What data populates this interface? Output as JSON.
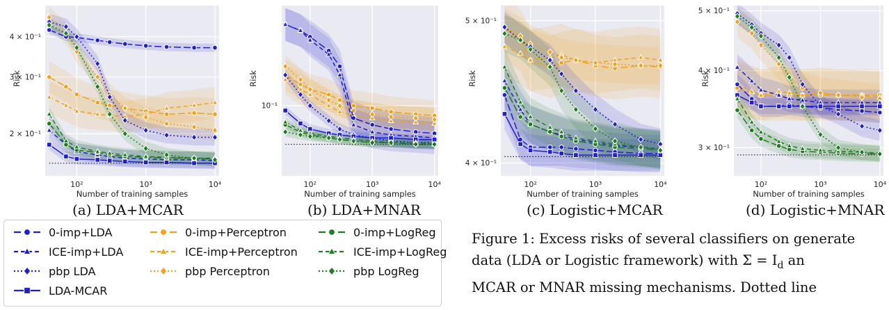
{
  "chart_data": [
    {
      "type": "line",
      "subcaption": "(a) LDA+MCAR",
      "xlabel": "Number of training samples",
      "ylabel": "Risk",
      "xscale": "log",
      "yscale": "log",
      "xlim": [
        35,
        11500
      ],
      "ylim": [
        0.148,
        0.5
      ],
      "xticks": [
        {
          "value": 100,
          "label": "10²"
        },
        {
          "value": 1000,
          "label": "10³"
        },
        {
          "value": 10000,
          "label": "10⁴"
        }
      ],
      "yticks": [
        {
          "value": 0.2,
          "label": "2 × 10⁻¹"
        },
        {
          "value": 0.3,
          "label": "3 × 10⁻¹"
        },
        {
          "value": 0.4,
          "label": "4 × 10⁻¹"
        }
      ],
      "x": [
        40,
        70,
        100,
        200,
        300,
        500,
        1000,
        2000,
        5000,
        10000
      ],
      "bayes_risk": 0.162,
      "series": [
        {
          "style": "0-imp+LDA",
          "values": [
            0.42,
            0.4,
            0.398,
            0.39,
            0.385,
            0.38,
            0.375,
            0.372,
            0.37,
            0.37
          ],
          "band": 0.03
        },
        {
          "style": "ICE-imp+LDA",
          "values": [
            0.205,
            0.185,
            0.176,
            0.172,
            0.17,
            0.168,
            0.167,
            0.166,
            0.166,
            0.165
          ],
          "band": 0.06
        },
        {
          "style": "pbp LDA",
          "values": [
            0.445,
            0.43,
            0.4,
            0.33,
            0.26,
            0.22,
            0.205,
            0.198,
            0.195,
            0.195
          ],
          "band": 0.06
        },
        {
          "style": "LDA-MCAR",
          "values": [
            0.185,
            0.17,
            0.167,
            0.166,
            0.165,
            0.164,
            0.163,
            0.163,
            0.162,
            0.162
          ],
          "band": 0.04
        },
        {
          "style": "0-imp+Perceptron",
          "values": [
            0.3,
            0.28,
            0.265,
            0.25,
            0.245,
            0.24,
            0.235,
            0.23,
            0.232,
            0.23
          ],
          "band": 0.12
        },
        {
          "style": "ICE-imp+Perceptron",
          "values": [
            0.26,
            0.245,
            0.235,
            0.23,
            0.228,
            0.226,
            0.23,
            0.24,
            0.245,
            0.25
          ],
          "band": 0.12
        },
        {
          "style": "pbp Perceptron",
          "values": [
            0.46,
            0.41,
            0.36,
            0.3,
            0.265,
            0.24,
            0.225,
            0.215,
            0.21,
            0.205
          ],
          "band": 0.08
        },
        {
          "style": "0-imp+LogReg",
          "values": [
            0.215,
            0.185,
            0.178,
            0.175,
            0.172,
            0.17,
            0.169,
            0.168,
            0.168,
            0.167
          ],
          "band": 0.05
        },
        {
          "style": "ICE-imp+LogReg",
          "values": [
            0.23,
            0.19,
            0.182,
            0.176,
            0.174,
            0.172,
            0.17,
            0.169,
            0.168,
            0.168
          ],
          "band": 0.05
        },
        {
          "style": "pbp LogReg",
          "values": [
            0.435,
            0.41,
            0.37,
            0.28,
            0.23,
            0.2,
            0.18,
            0.172,
            0.168,
            0.166
          ],
          "band": 0.05
        }
      ]
    },
    {
      "type": "line",
      "subcaption": "(b) LDA+MNAR",
      "xlabel": "Number of training samples",
      "ylabel": "Risk",
      "xscale": "log",
      "yscale": "log",
      "xlim": [
        35,
        11500
      ],
      "ylim": [
        0.055,
        0.235
      ],
      "xticks": [
        {
          "value": 100,
          "label": "10²"
        },
        {
          "value": 1000,
          "label": "10³"
        },
        {
          "value": 10000,
          "label": "10⁴"
        }
      ],
      "yticks": [
        {
          "value": 0.1,
          "label": "10⁻¹"
        }
      ],
      "x": [
        40,
        70,
        100,
        200,
        300,
        500,
        1000,
        2000,
        5000,
        10000
      ],
      "bayes_risk": 0.072,
      "series": [
        {
          "style": "0-imp+LDA",
          "values": [
            0.2,
            0.19,
            0.18,
            0.16,
            0.14,
            0.09,
            0.085,
            0.082,
            0.08,
            0.079
          ],
          "band": 0.15
        },
        {
          "style": "ICE-imp+LDA",
          "values": [
            0.2,
            0.19,
            0.175,
            0.155,
            0.13,
            0.085,
            0.08,
            0.078,
            0.077,
            0.076
          ],
          "band": 0.15
        },
        {
          "style": "pbp LDA",
          "values": [
            0.13,
            0.11,
            0.1,
            0.088,
            0.082,
            0.078,
            0.076,
            0.074,
            0.073,
            0.073
          ],
          "band": 0.05
        },
        {
          "style": "LDA-MCAR",
          "values": [
            0.096,
            0.086,
            0.082,
            0.079,
            0.078,
            0.077,
            0.076,
            0.076,
            0.075,
            0.075
          ],
          "band": 0.04
        },
        {
          "style": "0-imp+Perceptron",
          "values": [
            0.13,
            0.12,
            0.115,
            0.11,
            0.105,
            0.1,
            0.098,
            0.095,
            0.093,
            0.092
          ],
          "band": 0.14
        },
        {
          "style": "ICE-imp+Perceptron",
          "values": [
            0.125,
            0.115,
            0.11,
            0.1,
            0.095,
            0.092,
            0.09,
            0.088,
            0.087,
            0.086
          ],
          "band": 0.14
        },
        {
          "style": "pbp Perceptron",
          "values": [
            0.14,
            0.125,
            0.115,
            0.105,
            0.1,
            0.096,
            0.093,
            0.091,
            0.09,
            0.089
          ],
          "band": 0.1
        },
        {
          "style": "0-imp+LogReg",
          "values": [
            0.085,
            0.08,
            0.078,
            0.076,
            0.075,
            0.074,
            0.073,
            0.073,
            0.072,
            0.072
          ],
          "band": 0.04
        },
        {
          "style": "ICE-imp+LogReg",
          "values": [
            0.087,
            0.081,
            0.079,
            0.077,
            0.076,
            0.075,
            0.074,
            0.073,
            0.073,
            0.072
          ],
          "band": 0.04
        },
        {
          "style": "pbp LogReg",
          "values": [
            0.08,
            0.078,
            0.077,
            0.076,
            0.075,
            0.074,
            0.073,
            0.073,
            0.072,
            0.072
          ],
          "band": 0.04
        }
      ]
    },
    {
      "type": "line",
      "subcaption": "(c) Logistic+MCAR",
      "xlabel": "Number of training samples",
      "ylabel": "Risk",
      "xscale": "log",
      "yscale": "log",
      "xlim": [
        35,
        11500
      ],
      "ylim": [
        0.392,
        0.512
      ],
      "xticks": [
        {
          "value": 100,
          "label": "10²"
        },
        {
          "value": 1000,
          "label": "10³"
        },
        {
          "value": 10000,
          "label": "10⁴"
        }
      ],
      "yticks": [
        {
          "value": 0.4,
          "label": "4 × 10⁻¹"
        },
        {
          "value": 0.5,
          "label": "5 × 10⁻¹"
        }
      ],
      "x": [
        40,
        70,
        100,
        200,
        300,
        500,
        1000,
        2000,
        5000,
        10000
      ],
      "bayes_risk": 0.404,
      "series": [
        {
          "style": "0-imp+LDA",
          "values": [
            0.445,
            0.415,
            0.41,
            0.41,
            0.41,
            0.409,
            0.408,
            0.407,
            0.406,
            0.406
          ],
          "band": 0.03
        },
        {
          "style": "ICE-imp+LDA",
          "values": [
            0.455,
            0.435,
            0.425,
            0.42,
            0.418,
            0.415,
            0.413,
            0.411,
            0.41,
            0.409
          ],
          "band": 0.03
        },
        {
          "style": "pbp LDA",
          "values": [
            0.495,
            0.485,
            0.48,
            0.47,
            0.46,
            0.448,
            0.435,
            0.425,
            0.415,
            0.412
          ],
          "band": 0.025
        },
        {
          "style": "LDA-MCAR",
          "values": [
            0.432,
            0.412,
            0.408,
            0.407,
            0.406,
            0.405,
            0.405,
            0.405,
            0.405,
            0.405
          ],
          "band": 0.025
        },
        {
          "style": "0-imp+Perceptron",
          "values": [
            0.495,
            0.485,
            0.47,
            0.465,
            0.468,
            0.47,
            0.466,
            0.464,
            0.466,
            0.465
          ],
          "band": 0.05
        },
        {
          "style": "ICE-imp+Perceptron",
          "values": [
            0.48,
            0.475,
            0.47,
            0.472,
            0.474,
            0.47,
            0.468,
            0.47,
            0.472,
            0.47
          ],
          "band": 0.05
        },
        {
          "style": "pbp Perceptron",
          "values": [
            0.495,
            0.488,
            0.482,
            0.476,
            0.472,
            0.47,
            0.468,
            0.467,
            0.466,
            0.466
          ],
          "band": 0.03
        },
        {
          "style": "0-imp+LogReg",
          "values": [
            0.45,
            0.43,
            0.425,
            0.42,
            0.417,
            0.414,
            0.412,
            0.41,
            0.409,
            0.408
          ],
          "band": 0.03
        },
        {
          "style": "ICE-imp+LogReg",
          "values": [
            0.465,
            0.44,
            0.43,
            0.423,
            0.42,
            0.416,
            0.414,
            0.412,
            0.41,
            0.409
          ],
          "band": 0.03
        },
        {
          "style": "pbp LogReg",
          "values": [
            0.49,
            0.485,
            0.478,
            0.465,
            0.448,
            0.435,
            0.422,
            0.414,
            0.41,
            0.408
          ],
          "band": 0.03
        }
      ]
    },
    {
      "type": "line",
      "subcaption": "(d) Logistic+MNAR",
      "xlabel": "Number of training samples",
      "ylabel": "Risk",
      "xscale": "log",
      "yscale": "log",
      "xlim": [
        35,
        11500
      ],
      "ylim": [
        0.27,
        0.51
      ],
      "xticks": [
        {
          "value": 100,
          "label": "10²"
        },
        {
          "value": 1000,
          "label": "10³"
        },
        {
          "value": 10000,
          "label": "10⁴"
        }
      ],
      "yticks": [
        {
          "value": 0.3,
          "label": "3 × 10⁻¹"
        },
        {
          "value": 0.4,
          "label": "4 × 10⁻¹"
        },
        {
          "value": 0.5,
          "label": "5 × 10⁻¹"
        }
      ],
      "x": [
        40,
        70,
        100,
        200,
        300,
        500,
        1000,
        2000,
        5000,
        10000
      ],
      "bayes_risk": 0.292,
      "series": [
        {
          "style": "0-imp+LDA",
          "values": [
            0.38,
            0.36,
            0.35,
            0.35,
            0.352,
            0.35,
            0.348,
            0.346,
            0.344,
            0.342
          ],
          "band": 0.04
        },
        {
          "style": "ICE-imp+LDA",
          "values": [
            0.405,
            0.385,
            0.372,
            0.365,
            0.36,
            0.358,
            0.355,
            0.355,
            0.355,
            0.355
          ],
          "band": 0.05
        },
        {
          "style": "pbp LDA",
          "values": [
            0.495,
            0.475,
            0.46,
            0.44,
            0.42,
            0.38,
            0.35,
            0.34,
            0.325,
            0.32
          ],
          "band": 0.04
        },
        {
          "style": "LDA-MCAR",
          "values": [
            0.365,
            0.355,
            0.35,
            0.35,
            0.35,
            0.35,
            0.35,
            0.35,
            0.35,
            0.35
          ],
          "band": 0.03
        },
        {
          "style": "0-imp+Perceptron",
          "values": [
            0.375,
            0.368,
            0.365,
            0.365,
            0.365,
            0.365,
            0.365,
            0.365,
            0.365,
            0.365
          ],
          "band": 0.1
        },
        {
          "style": "ICE-imp+Perceptron",
          "values": [
            0.38,
            0.37,
            0.365,
            0.37,
            0.368,
            0.365,
            0.368,
            0.365,
            0.364,
            0.362
          ],
          "band": 0.1
        },
        {
          "style": "pbp Perceptron",
          "values": [
            0.48,
            0.46,
            0.44,
            0.41,
            0.39,
            0.375,
            0.368,
            0.365,
            0.362,
            0.36
          ],
          "band": 0.06
        },
        {
          "style": "0-imp+LogReg",
          "values": [
            0.345,
            0.32,
            0.31,
            0.302,
            0.298,
            0.296,
            0.295,
            0.294,
            0.293,
            0.293
          ],
          "band": 0.03
        },
        {
          "style": "ICE-imp+LogReg",
          "values": [
            0.36,
            0.33,
            0.318,
            0.307,
            0.302,
            0.299,
            0.297,
            0.296,
            0.295,
            0.294
          ],
          "band": 0.03
        },
        {
          "style": "pbp LogReg",
          "values": [
            0.49,
            0.47,
            0.455,
            0.42,
            0.39,
            0.35,
            0.315,
            0.3,
            0.295,
            0.293
          ],
          "band": 0.03
        }
      ]
    }
  ],
  "styles": {
    "0-imp+LDA": {
      "color": "#1f1fcf",
      "dash": "10,4",
      "marker": "circle"
    },
    "ICE-imp+LDA": {
      "color": "#1f1fcf",
      "dash": "6,4",
      "marker": "triangle"
    },
    "pbp LDA": {
      "color": "#1f1fcf",
      "dash": "2,3",
      "marker": "diamond"
    },
    "LDA-MCAR": {
      "color": "#1f1fcf",
      "dash": "",
      "marker": "square"
    },
    "0-imp+Perceptron": {
      "color": "#f0a11d",
      "dash": "10,4",
      "marker": "circle"
    },
    "ICE-imp+Perceptron": {
      "color": "#f0a11d",
      "dash": "6,4",
      "marker": "triangle"
    },
    "pbp Perceptron": {
      "color": "#f0a11d",
      "dash": "2,3",
      "marker": "diamond"
    },
    "0-imp+LogReg": {
      "color": "#1e7d1e",
      "dash": "10,4",
      "marker": "circle"
    },
    "ICE-imp+LogReg": {
      "color": "#1e7d1e",
      "dash": "6,4",
      "marker": "triangle"
    },
    "pbp LogReg": {
      "color": "#1e7d1e",
      "dash": "2,3",
      "marker": "diamond"
    }
  },
  "plot_background": "#eaeaf2",
  "legend": {
    "placement": "bottom-left",
    "entries": [
      {
        "label": "0-imp+LDA",
        "style": "0-imp+LDA"
      },
      {
        "label": "0-imp+Perceptron",
        "style": "0-imp+Perceptron"
      },
      {
        "label": "0-imp+LogReg",
        "style": "0-imp+LogReg"
      },
      {
        "label": "ICE-imp+LDA",
        "style": "ICE-imp+LDA"
      },
      {
        "label": "ICE-imp+Perceptron",
        "style": "ICE-imp+Perceptron"
      },
      {
        "label": "ICE-imp+LogReg",
        "style": "ICE-imp+LogReg"
      },
      {
        "label": "pbp LDA",
        "style": "pbp LDA"
      },
      {
        "label": "pbp Perceptron",
        "style": "pbp Perceptron"
      },
      {
        "label": "pbp LogReg",
        "style": "pbp LogReg"
      },
      {
        "label": "LDA-MCAR",
        "style": "LDA-MCAR"
      }
    ]
  },
  "caption": {
    "line1": "Figure 1: Excess risks of several classifiers on generate",
    "line2": "data (LDA or Logistic framework) with Σ = I",
    "line2_sub": "d",
    "line2_end": " an",
    "line3": "MCAR or MNAR missing mechanisms. Dotted line"
  }
}
